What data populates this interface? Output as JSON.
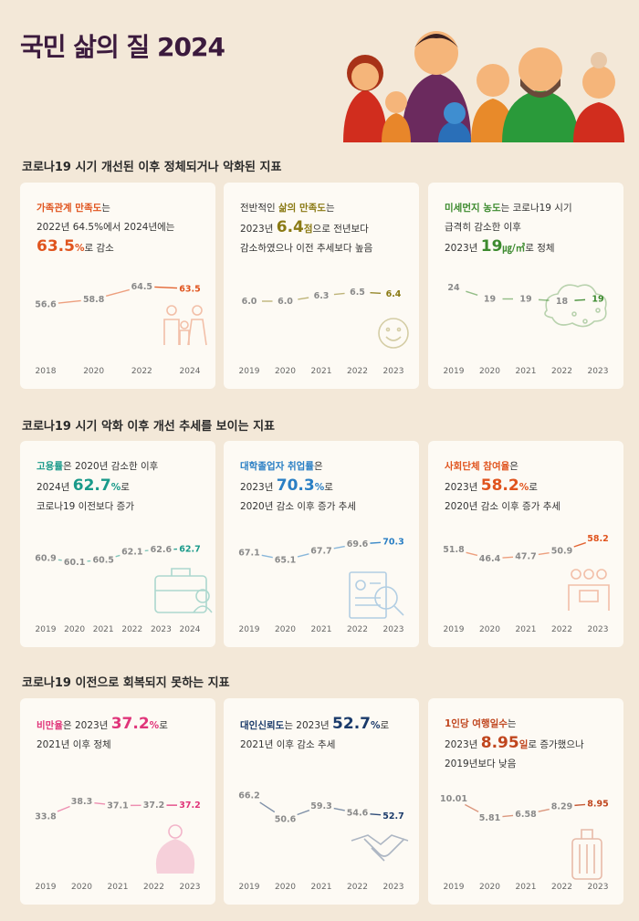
{
  "page_title": "국민 삶의 질 2024",
  "sections": [
    {
      "title": "코로나19 시기 개선된 이후 정체되거나 악화된 지표"
    },
    {
      "title": "코로나19 시기 악화 이후 개선 추세를 보이는 지표"
    },
    {
      "title": "코로나19 이전으로 회복되지 못하는 지표"
    }
  ],
  "cards": [
    {
      "line1_pre": "",
      "key": "가족관계 만족도",
      "line1_post": "는",
      "line2": "2022년 64.5%에서 2024년에는",
      "line3_pre": "",
      "big": "63.5",
      "unit": "%",
      "line3_post": "로 감소",
      "color": "#e0541e",
      "icon": "family-icon"
    },
    {
      "line1_pre": "전반적인 ",
      "key": "삶의 만족도",
      "line1_post": "는",
      "line2_pre": "2023년 ",
      "big": "6.4",
      "unit": "점",
      "line2_post": "으로 전년보다",
      "line3": "감소하였으나 이전 추세보다 높음",
      "color": "#8a7a14",
      "icon": "smiley-icon"
    },
    {
      "line1_pre": "",
      "key": "미세먼지 농도",
      "line1_post": "는 코로나19 시기",
      "line2": "급격히 감소한 이후",
      "line3_pre": "2023년 ",
      "big": "19",
      "unit": "㎍/㎥",
      "line3_post": "로 정체",
      "color": "#3c8a2e",
      "icon": "dust-icon"
    },
    {
      "line1_pre": "",
      "key": "고용률",
      "line1_post": "은 2020년 감소한 이후",
      "line2_pre": "2024년 ",
      "big": "62.7",
      "unit": "%",
      "line2_post": "로",
      "line3": "코로나19 이전보다 증가",
      "color": "#1a9a8a",
      "icon": "briefcase-icon"
    },
    {
      "line1_pre": "",
      "key": "대학졸업자 취업률",
      "line1_post": "은",
      "line2_pre": "2023년 ",
      "big": "70.3",
      "unit": "%",
      "line2_post": "로",
      "line3": "2020년 감소 이후 증가 추세",
      "color": "#2a7fc4",
      "icon": "resume-icon"
    },
    {
      "line1_pre": "",
      "key": "사회단체 참여율",
      "line1_post": "은",
      "line2_pre": "2023년 ",
      "big": "58.2",
      "unit": "%",
      "line2_post": "로",
      "line3": "2020년 감소 이후 증가 추세",
      "color": "#e0541e",
      "icon": "group-icon"
    },
    {
      "line1_pre": "",
      "key": "비만율",
      "line1_post": "은 2023년 ",
      "big_inline": "37.2",
      "unit_inline": "%",
      "line1_tail": "로",
      "line2": "2021년 이후 정체",
      "color": "#e0357a",
      "icon": "person-icon"
    },
    {
      "line1_pre": "",
      "key": "대인신뢰도",
      "line1_post": "는 2023년 ",
      "big_inline": "52.7",
      "unit_inline": "%",
      "line1_tail": "로",
      "line2": "2021년 이후 감소 추세",
      "color": "#1a3a6a",
      "icon": "handshake-icon"
    },
    {
      "line1_pre": "",
      "key": "1인당 여행일수",
      "line1_post": "는",
      "line2_pre": "2023년 ",
      "big": "8.95",
      "unit": "일",
      "line2_post": "로 증가했으나",
      "line3": "2019년보다 낮음",
      "color": "#c0461e",
      "icon": "suitcase-icon"
    }
  ],
  "chart_data": [
    {
      "type": "line",
      "title": "가족관계 만족도",
      "x": [
        "2018",
        "2020",
        "2022",
        "2024"
      ],
      "values": [
        56.6,
        58.8,
        64.5,
        63.5
      ],
      "labels": [
        "56.6",
        "58.8",
        "64.5",
        "63.5"
      ],
      "ylim": [
        50,
        70
      ]
    },
    {
      "type": "line",
      "title": "삶의 만족도",
      "x": [
        "2019",
        "2020",
        "2021",
        "2022",
        "2023"
      ],
      "values": [
        6.0,
        6.0,
        6.3,
        6.5,
        6.4
      ],
      "labels": [
        "6.0",
        "6.0",
        "6.3",
        "6.5",
        "6.4"
      ],
      "ylim": [
        5.0,
        7.5
      ]
    },
    {
      "type": "line",
      "title": "미세먼지 농도",
      "x": [
        "2019",
        "2020",
        "2021",
        "2022",
        "2023"
      ],
      "values": [
        24,
        19,
        19,
        18,
        19
      ],
      "labels": [
        "24",
        "19",
        "19",
        "18",
        "19"
      ],
      "ylim": [
        10,
        30
      ]
    },
    {
      "type": "line",
      "title": "고용률",
      "x": [
        "2019",
        "2020",
        "2021",
        "2022",
        "2023",
        "2024"
      ],
      "values": [
        60.9,
        60.1,
        60.5,
        62.1,
        62.6,
        62.7
      ],
      "labels": [
        "60.9",
        "60.1",
        "60.5",
        "62.1",
        "62.6",
        "62.7"
      ],
      "ylim": [
        57,
        66
      ]
    },
    {
      "type": "line",
      "title": "대학졸업자 취업률",
      "x": [
        "2019",
        "2020",
        "2021",
        "2022",
        "2023"
      ],
      "values": [
        67.1,
        65.1,
        67.7,
        69.6,
        70.3
      ],
      "labels": [
        "67.1",
        "65.1",
        "67.7",
        "69.6",
        "70.3"
      ],
      "ylim": [
        60,
        73
      ]
    },
    {
      "type": "line",
      "title": "사회단체 참여율",
      "x": [
        "2019",
        "2020",
        "2021",
        "2022",
        "2023"
      ],
      "values": [
        51.8,
        46.4,
        47.7,
        50.9,
        58.2
      ],
      "labels": [
        "51.8",
        "46.4",
        "47.7",
        "50.9",
        "58.2"
      ],
      "ylim": [
        35,
        62
      ]
    },
    {
      "type": "line",
      "title": "비만율",
      "x": [
        "2019",
        "2020",
        "2021",
        "2022",
        "2023"
      ],
      "values": [
        33.8,
        38.3,
        37.1,
        37.2,
        37.2
      ],
      "labels": [
        "33.8",
        "38.3",
        "37.1",
        "37.2",
        "37.2"
      ],
      "ylim": [
        28,
        42
      ]
    },
    {
      "type": "line",
      "title": "대인신뢰도",
      "x": [
        "2019",
        "2020",
        "2021",
        "2022",
        "2023"
      ],
      "values": [
        66.2,
        50.6,
        59.3,
        54.6,
        52.7
      ],
      "labels": [
        "66.2",
        "50.6",
        "59.3",
        "54.6",
        "52.7"
      ],
      "ylim": [
        40,
        70
      ]
    },
    {
      "type": "line",
      "title": "1인당 여행일수",
      "x": [
        "2019",
        "2020",
        "2021",
        "2022",
        "2023"
      ],
      "values": [
        10.01,
        5.81,
        6.58,
        8.29,
        8.95
      ],
      "labels": [
        "10.01",
        "5.81",
        "6.58",
        "8.29",
        "8.95"
      ],
      "ylim": [
        2,
        12
      ]
    }
  ]
}
